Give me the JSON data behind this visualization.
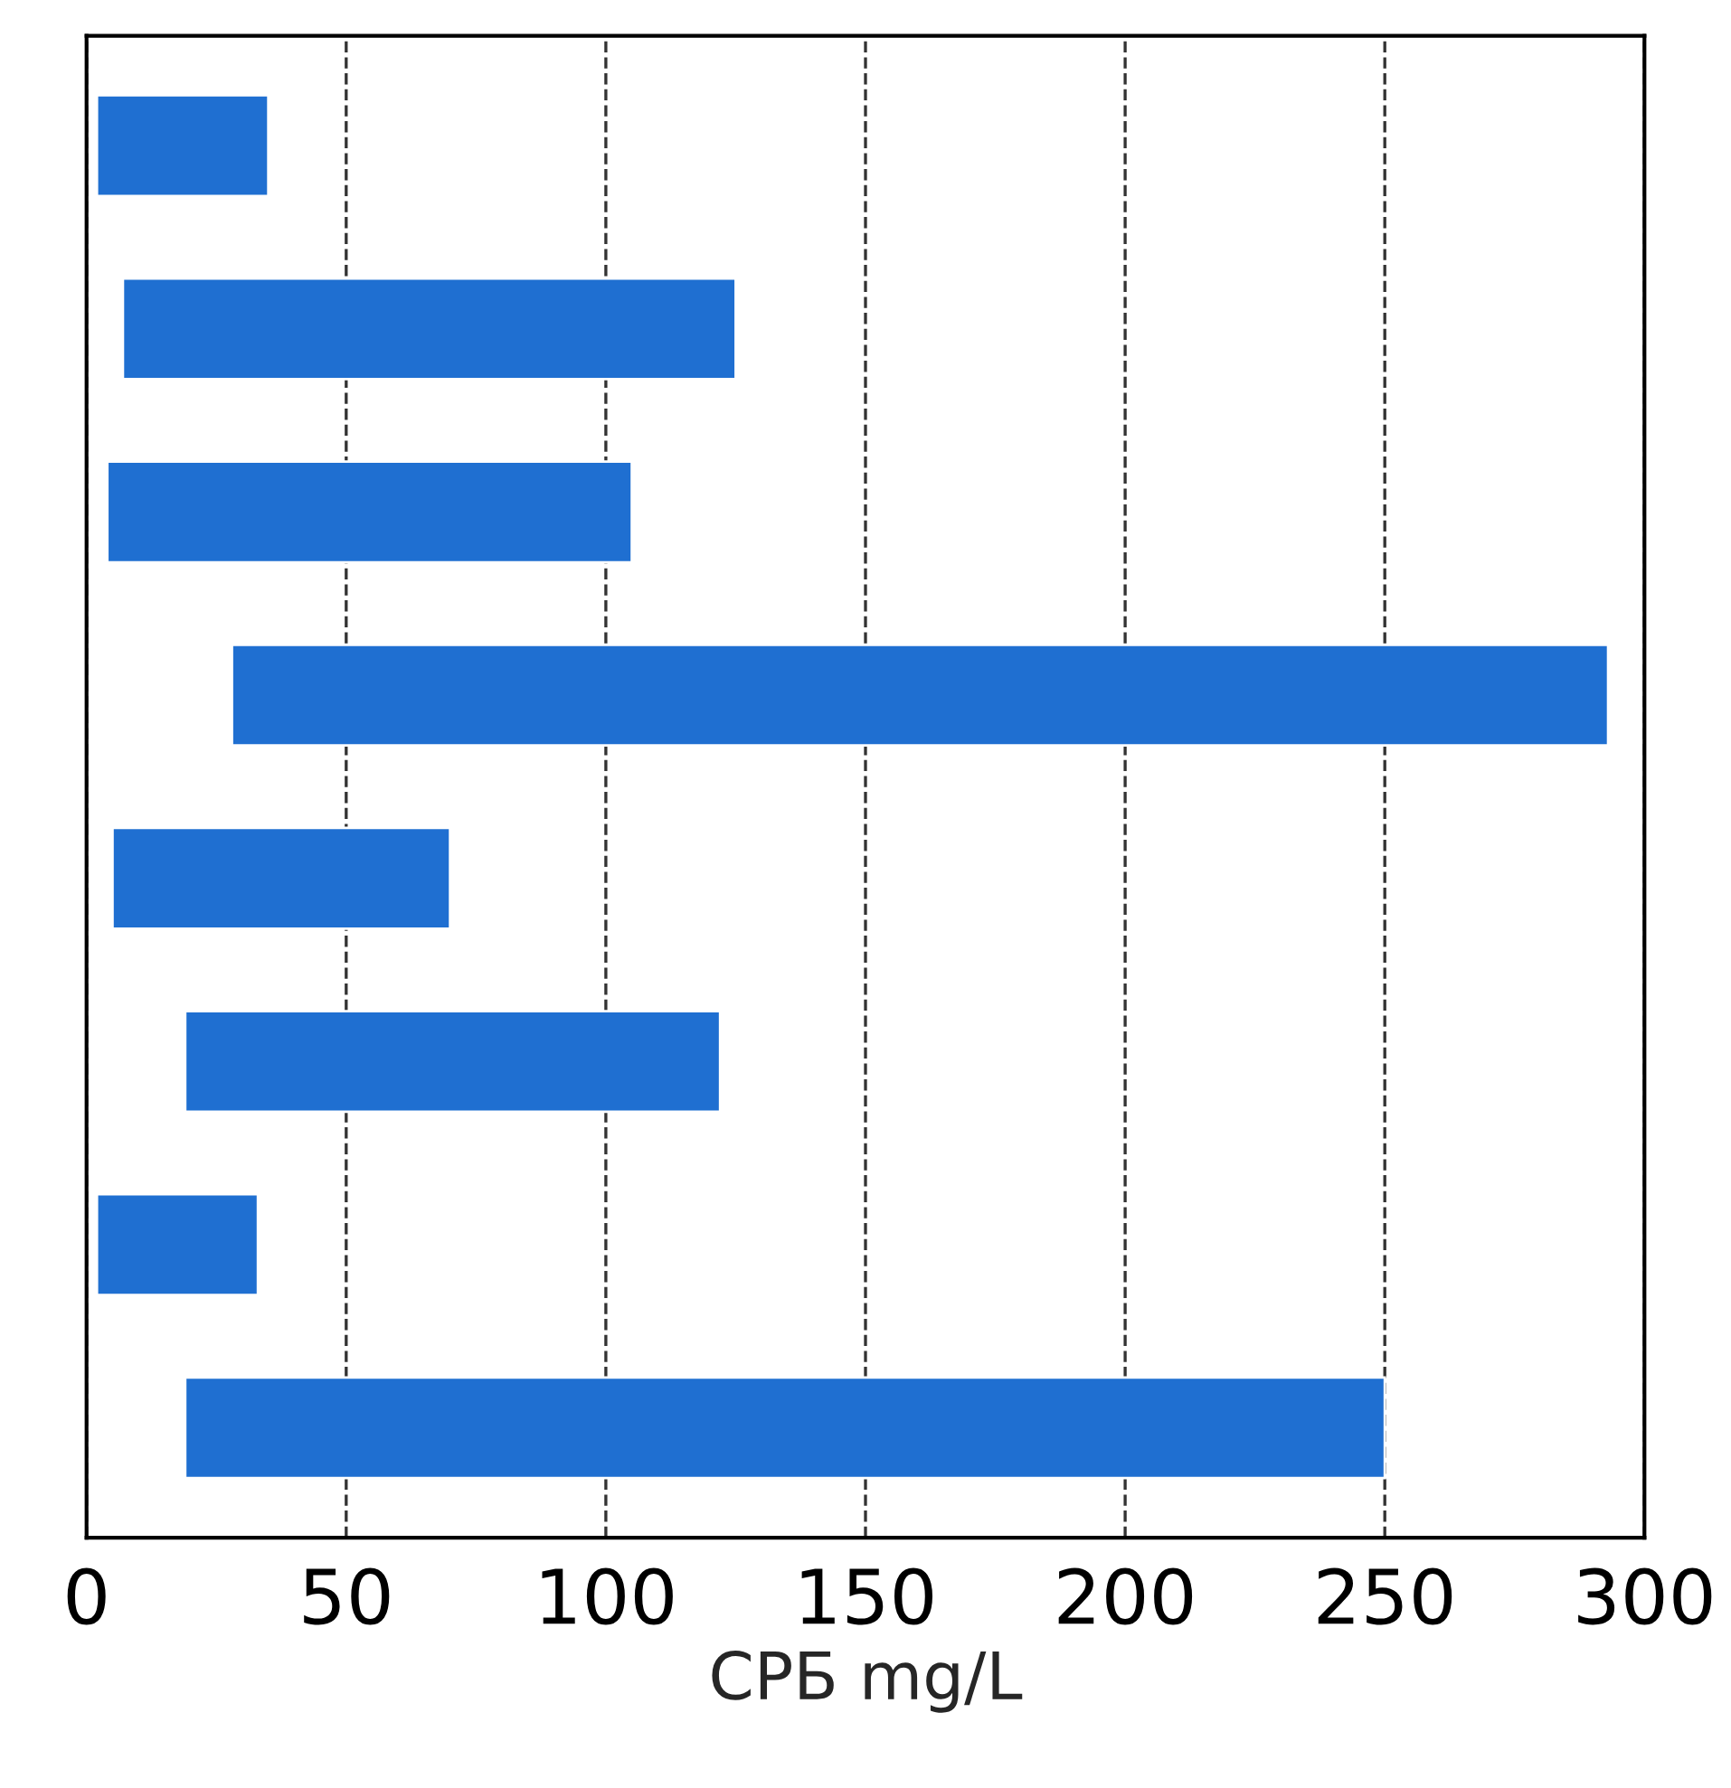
{
  "chart_data": {
    "type": "bar",
    "orientation": "horizontal",
    "xlabel": "СРБ mg/L",
    "categories": [
      null,
      null,
      null,
      null,
      null,
      null,
      null,
      null
    ],
    "base": [
      2,
      7,
      4,
      28,
      5,
      19,
      2,
      19
    ],
    "values": [
      33,
      118,
      101,
      265,
      65,
      103,
      31,
      231
    ],
    "color": "#1f6fd1",
    "xlim": [
      0,
      300
    ],
    "xticks": [
      0,
      50,
      100,
      150,
      200,
      250,
      300
    ],
    "grid": "x"
  }
}
